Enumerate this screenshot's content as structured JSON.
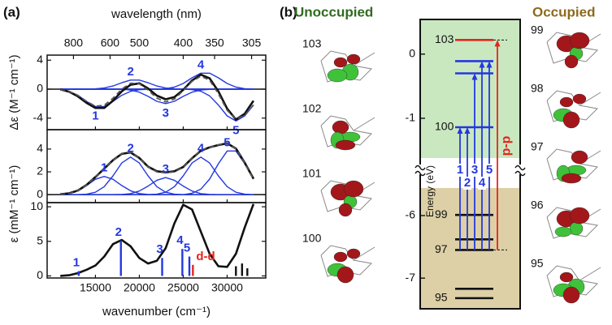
{
  "figure": {
    "panel_a": "(a)",
    "panel_b": "(b)"
  },
  "chart_data": [
    {
      "type": "line",
      "ylabel": "Δε (M⁻¹ cm⁻¹)",
      "x2label": "wavelength (nm)",
      "x2ticks": [
        {
          "value": 12500,
          "label": "800"
        },
        {
          "value": 16667,
          "label": "600"
        },
        {
          "value": 20000,
          "label": "500"
        },
        {
          "value": 25000,
          "label": "400"
        },
        {
          "value": 28571,
          "label": "350"
        },
        {
          "value": 32787,
          "label": "305"
        }
      ],
      "xlim": [
        9500,
        34400
      ],
      "ylim": [
        -5.6,
        4.7
      ],
      "yticks": [
        -4,
        0,
        4
      ],
      "zero_line": true,
      "x": [
        11000,
        12000,
        13000,
        14000,
        15000,
        16000,
        17000,
        18000,
        19000,
        20000,
        21000,
        22000,
        23000,
        24000,
        25000,
        26000,
        27000,
        28000,
        29000,
        30000,
        31000,
        32000,
        33000
      ],
      "series": [
        {
          "name": "1",
          "color": "#2438e0",
          "values": [
            -0.08,
            -0.3,
            -0.85,
            -1.7,
            -2.4,
            -2.4,
            -1.7,
            -0.85,
            -0.3,
            -0.08,
            -0.02,
            0,
            0,
            0,
            0,
            0,
            0,
            0,
            0,
            0,
            0,
            0,
            0
          ]
        },
        {
          "name": "2",
          "color": "#2438e0",
          "values": [
            0,
            0,
            0,
            0.01,
            0.04,
            0.16,
            0.44,
            0.88,
            1.25,
            1.25,
            0.88,
            0.44,
            0.16,
            0.04,
            0,
            0,
            0,
            0,
            0,
            0,
            0,
            0,
            0
          ]
        },
        {
          "name": "3",
          "color": "#2438e0",
          "values": [
            0,
            0,
            0,
            0,
            0,
            0,
            0,
            -0.03,
            -0.13,
            -0.42,
            -1.0,
            -1.68,
            -2.0,
            -1.68,
            -1.0,
            -0.42,
            -0.13,
            -0.03,
            0,
            0,
            0,
            0,
            0
          ]
        },
        {
          "name": "4",
          "color": "#2438e0",
          "values": [
            0,
            0,
            0,
            0,
            0,
            0,
            0,
            0,
            0,
            0,
            0,
            0,
            0.07,
            0.28,
            0.78,
            1.56,
            2.2,
            2.2,
            1.56,
            0.78,
            0.28,
            0.07,
            0.02
          ]
        },
        {
          "name": "5",
          "color": "#2438e0",
          "values": [
            0,
            0,
            0,
            0,
            0,
            0,
            0,
            0,
            0,
            0,
            0,
            0,
            0,
            0,
            0,
            -0.06,
            -0.28,
            -0.93,
            -2.2,
            -3.7,
            -4.4,
            -3.7,
            -2.2
          ]
        },
        {
          "color": "#111111",
          "values": [
            -0.05,
            -0.35,
            -1.0,
            -1.9,
            -2.6,
            -2.6,
            -1.6,
            -0.3,
            0.6,
            0.8,
            0.1,
            -0.9,
            -1.4,
            -1.1,
            -0.1,
            1.2,
            2.0,
            1.5,
            -0.3,
            -2.7,
            -4.2,
            -3.4,
            -1.6
          ]
        },
        {
          "color": "#555555",
          "style": "dashed",
          "values": [
            -0.08,
            -0.3,
            -0.85,
            -1.69,
            -2.36,
            -2.24,
            -1.26,
            0.0,
            0.82,
            0.75,
            -0.14,
            -1.24,
            -1.77,
            -1.36,
            -0.22,
            1.08,
            1.79,
            1.24,
            -0.64,
            -2.92,
            -4.12,
            -3.63,
            -2.18
          ]
        }
      ]
    },
    {
      "type": "line",
      "ylabel": "ε (mM⁻¹ cm⁻¹)",
      "xlim": [
        9500,
        34400
      ],
      "ylim": [
        -0.7,
        5.7
      ],
      "yticks": [
        0,
        2,
        4
      ],
      "zero_line": true,
      "x": [
        11000,
        12000,
        13000,
        14000,
        15000,
        16000,
        17000,
        18000,
        19000,
        20000,
        21000,
        22000,
        23000,
        24000,
        25000,
        26000,
        27000,
        28000,
        29000,
        30000,
        31000,
        32000,
        33000
      ],
      "series": [
        {
          "name": "1",
          "color": "#2438e0",
          "values": [
            0.02,
            0.1,
            0.34,
            0.8,
            1.35,
            1.6,
            1.35,
            0.8,
            0.34,
            0.1,
            0.02,
            0,
            0,
            0,
            0,
            0,
            0,
            0,
            0,
            0,
            0,
            0,
            0
          ]
        },
        {
          "name": "2",
          "color": "#2438e0",
          "values": [
            0,
            0,
            0,
            0.04,
            0.21,
            0.7,
            1.65,
            2.78,
            3.3,
            2.78,
            1.65,
            0.7,
            0.21,
            0.04,
            0,
            0,
            0,
            0,
            0,
            0,
            0,
            0,
            0
          ]
        },
        {
          "name": "3",
          "color": "#2438e0",
          "values": [
            0,
            0,
            0,
            0,
            0,
            0,
            0,
            0.02,
            0.09,
            0.32,
            0.75,
            1.26,
            1.5,
            1.26,
            0.75,
            0.32,
            0.09,
            0.02,
            0,
            0,
            0,
            0,
            0
          ]
        },
        {
          "name": "4",
          "color": "#2438e0",
          "values": [
            0,
            0,
            0,
            0,
            0,
            0,
            0,
            0,
            0,
            0,
            0,
            0.04,
            0.21,
            0.7,
            1.65,
            2.78,
            3.3,
            2.78,
            1.65,
            0.7,
            0.21,
            0.04,
            0
          ]
        },
        {
          "name": "5",
          "color": "#2438e0",
          "values": [
            0,
            0,
            0,
            0,
            0,
            0,
            0,
            0,
            0,
            0,
            0,
            0,
            0,
            0,
            0,
            0.12,
            0.48,
            1.36,
            2.71,
            3.83,
            3.83,
            2.71,
            1.36
          ]
        },
        {
          "color": "#111111",
          "values": [
            0.03,
            0.12,
            0.36,
            0.86,
            1.55,
            2.28,
            3.02,
            3.58,
            3.7,
            3.22,
            2.45,
            2.05,
            1.95,
            2.05,
            2.42,
            3.2,
            3.85,
            4.15,
            4.35,
            4.5,
            4.05,
            2.8,
            1.4
          ]
        },
        {
          "color": "#555555",
          "style": "dashed",
          "values": [
            0.02,
            0.1,
            0.34,
            0.84,
            1.56,
            2.3,
            3.0,
            3.6,
            3.73,
            3.2,
            2.42,
            2.0,
            1.92,
            2.0,
            2.4,
            3.22,
            3.87,
            4.16,
            4.36,
            4.53,
            4.04,
            2.75,
            1.36
          ]
        }
      ]
    },
    {
      "type": "line",
      "xlabel": "wavenumber (cm⁻¹)",
      "xlim": [
        9500,
        34400
      ],
      "xticks": [
        15000,
        20000,
        25000,
        30000
      ],
      "ylim": [
        -0.3,
        10.6
      ],
      "yticks": [
        0,
        5,
        10
      ],
      "x": [
        11000,
        12000,
        13000,
        14000,
        15000,
        16000,
        17000,
        18000,
        19000,
        20000,
        21000,
        22000,
        23000,
        24000,
        25000,
        26000,
        27000,
        28000,
        29000,
        30000,
        31000,
        32000,
        33000
      ],
      "series": [
        {
          "color": "#111111",
          "values": [
            0,
            0.1,
            0.4,
            0.9,
            1.5,
            2.8,
            4.6,
            5.2,
            4.3,
            2.6,
            1.8,
            2.2,
            4.0,
            7.6,
            10.3,
            9.6,
            6.4,
            3.2,
            1.4,
            1.3,
            3.2,
            7.0,
            10.4
          ]
        }
      ],
      "sticks": [
        {
          "x": 13100,
          "value": 0.7,
          "label": "1",
          "color": "#2438e0"
        },
        {
          "x": 17900,
          "value": 5.1,
          "label": "2",
          "color": "#2438e0"
        },
        {
          "x": 22600,
          "value": 2.6,
          "label": "3",
          "color": "#2438e0"
        },
        {
          "x": 24900,
          "value": 3.9,
          "label": "4",
          "color": "#2438e0"
        },
        {
          "x": 25700,
          "value": 2.8,
          "label": "5",
          "color": "#2438e0"
        },
        {
          "x": 26100,
          "value": 1.6,
          "label": "d-d",
          "color": "#e8231e"
        },
        {
          "x": 31000,
          "value": 1.4,
          "color": "#111111"
        },
        {
          "x": 31700,
          "value": 1.8,
          "color": "#111111"
        },
        {
          "x": 32300,
          "value": 1.1,
          "color": "#111111"
        }
      ]
    },
    {
      "type": "energy-levels",
      "ylabel": "Energy (eV)",
      "unoccupied_label": "Unoccupied",
      "occupied_label": "Occupied",
      "unoccupied_color": "#c9e8c0",
      "occupied_color": "#ddd0a6",
      "upper": {
        "ylim": [
          -1.62,
          0.54
        ],
        "yticks": [
          0,
          -1
        ]
      },
      "lower": {
        "ylim": [
          -7.49,
          -5.56
        ],
        "yticks": [
          -6,
          -7
        ]
      },
      "levels": [
        {
          "energy": 0.22,
          "label": "103",
          "color": "#e8231e",
          "arrows": [
            "d-d"
          ]
        },
        {
          "energy": -0.11,
          "color": "#2438e0",
          "arrows": [
            "4",
            "5"
          ]
        },
        {
          "energy": -0.3,
          "color": "#2438e0",
          "arrows": [
            "3"
          ]
        },
        {
          "energy": -1.14,
          "label": "100",
          "color": "#2438e0",
          "arrows": [
            "1",
            "2"
          ]
        },
        {
          "energy": -5.99,
          "label": "99",
          "color": "#111111"
        },
        {
          "energy": -6.38,
          "color": "#111111"
        },
        {
          "energy": -6.55,
          "label": "97",
          "color": "#111111",
          "origin": true
        },
        {
          "energy": -7.17,
          "color": "#111111"
        },
        {
          "energy": -7.32,
          "label": "95",
          "color": "#111111"
        }
      ],
      "orbitals_unoccupied": [
        "103",
        "102",
        "101",
        "100"
      ],
      "orbitals_occupied": [
        "99",
        "98",
        "97",
        "96",
        "95"
      ]
    }
  ]
}
